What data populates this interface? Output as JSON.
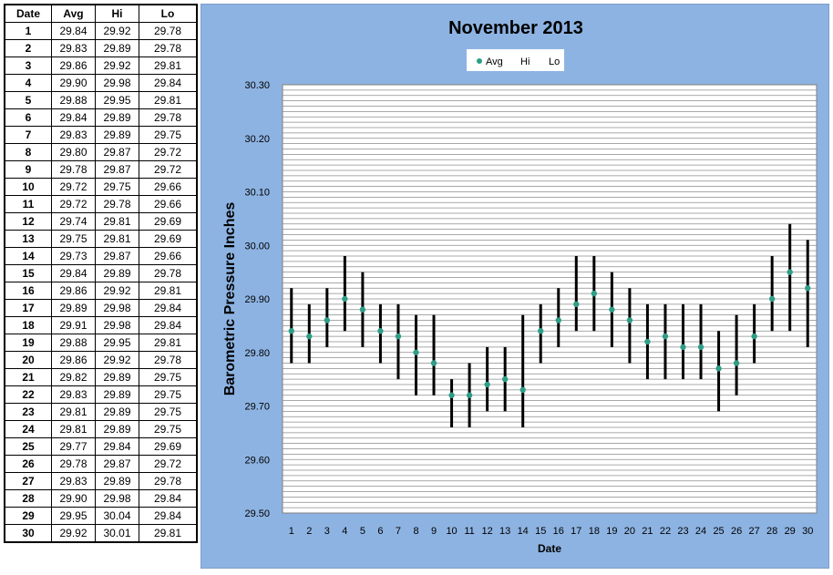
{
  "table": {
    "headers": [
      "Date",
      "Avg",
      "Hi",
      "Lo"
    ],
    "rows": [
      [
        "1",
        "29.84",
        "29.92",
        "29.78"
      ],
      [
        "2",
        "29.83",
        "29.89",
        "29.78"
      ],
      [
        "3",
        "29.86",
        "29.92",
        "29.81"
      ],
      [
        "4",
        "29.90",
        "29.98",
        "29.84"
      ],
      [
        "5",
        "29.88",
        "29.95",
        "29.81"
      ],
      [
        "6",
        "29.84",
        "29.89",
        "29.78"
      ],
      [
        "7",
        "29.83",
        "29.89",
        "29.75"
      ],
      [
        "8",
        "29.80",
        "29.87",
        "29.72"
      ],
      [
        "9",
        "29.78",
        "29.87",
        "29.72"
      ],
      [
        "10",
        "29.72",
        "29.75",
        "29.66"
      ],
      [
        "11",
        "29.72",
        "29.78",
        "29.66"
      ],
      [
        "12",
        "29.74",
        "29.81",
        "29.69"
      ],
      [
        "13",
        "29.75",
        "29.81",
        "29.69"
      ],
      [
        "14",
        "29.73",
        "29.87",
        "29.66"
      ],
      [
        "15",
        "29.84",
        "29.89",
        "29.78"
      ],
      [
        "16",
        "29.86",
        "29.92",
        "29.81"
      ],
      [
        "17",
        "29.89",
        "29.98",
        "29.84"
      ],
      [
        "18",
        "29.91",
        "29.98",
        "29.84"
      ],
      [
        "19",
        "29.88",
        "29.95",
        "29.81"
      ],
      [
        "20",
        "29.86",
        "29.92",
        "29.78"
      ],
      [
        "21",
        "29.82",
        "29.89",
        "29.75"
      ],
      [
        "22",
        "29.83",
        "29.89",
        "29.75"
      ],
      [
        "23",
        "29.81",
        "29.89",
        "29.75"
      ],
      [
        "24",
        "29.81",
        "29.89",
        "29.75"
      ],
      [
        "25",
        "29.77",
        "29.84",
        "29.69"
      ],
      [
        "26",
        "29.78",
        "29.87",
        "29.72"
      ],
      [
        "27",
        "29.83",
        "29.89",
        "29.78"
      ],
      [
        "28",
        "29.90",
        "29.98",
        "29.84"
      ],
      [
        "29",
        "29.95",
        "30.04",
        "29.84"
      ],
      [
        "30",
        "29.92",
        "30.01",
        "29.81"
      ]
    ]
  },
  "chart_data": {
    "type": "scatter",
    "title": "November 2013",
    "xlabel": "Date",
    "ylabel": "Barometric Pressure Inches",
    "ylim": [
      29.5,
      30.3
    ],
    "yticks": [
      "29.50",
      "29.60",
      "29.70",
      "29.80",
      "29.90",
      "30.00",
      "30.10",
      "30.20",
      "30.30"
    ],
    "x": [
      1,
      2,
      3,
      4,
      5,
      6,
      7,
      8,
      9,
      10,
      11,
      12,
      13,
      14,
      15,
      16,
      17,
      18,
      19,
      20,
      21,
      22,
      23,
      24,
      25,
      26,
      27,
      28,
      29,
      30
    ],
    "series": [
      {
        "name": "Avg",
        "values": [
          29.84,
          29.83,
          29.86,
          29.9,
          29.88,
          29.84,
          29.83,
          29.8,
          29.78,
          29.72,
          29.72,
          29.74,
          29.75,
          29.73,
          29.84,
          29.86,
          29.89,
          29.91,
          29.88,
          29.86,
          29.82,
          29.83,
          29.81,
          29.81,
          29.77,
          29.78,
          29.83,
          29.9,
          29.95,
          29.92
        ]
      },
      {
        "name": "Hi",
        "values": [
          29.92,
          29.89,
          29.92,
          29.98,
          29.95,
          29.89,
          29.89,
          29.87,
          29.87,
          29.75,
          29.78,
          29.81,
          29.81,
          29.87,
          29.89,
          29.92,
          29.98,
          29.98,
          29.95,
          29.92,
          29.89,
          29.89,
          29.89,
          29.89,
          29.84,
          29.87,
          29.89,
          29.98,
          30.04,
          30.01
        ]
      },
      {
        "name": "Lo",
        "values": [
          29.78,
          29.78,
          29.81,
          29.84,
          29.81,
          29.78,
          29.75,
          29.72,
          29.72,
          29.66,
          29.66,
          29.69,
          29.69,
          29.66,
          29.78,
          29.81,
          29.84,
          29.84,
          29.81,
          29.78,
          29.75,
          29.75,
          29.75,
          29.75,
          29.69,
          29.72,
          29.78,
          29.84,
          29.84,
          29.81
        ]
      }
    ],
    "grid": true,
    "legend_position": "top",
    "colors": {
      "panel_background": "#8db3e2",
      "plot_background": "#ffffff",
      "gridline": "#8c8c8c",
      "range_bar": "#000000",
      "avg_marker": "#2e9e86"
    }
  }
}
